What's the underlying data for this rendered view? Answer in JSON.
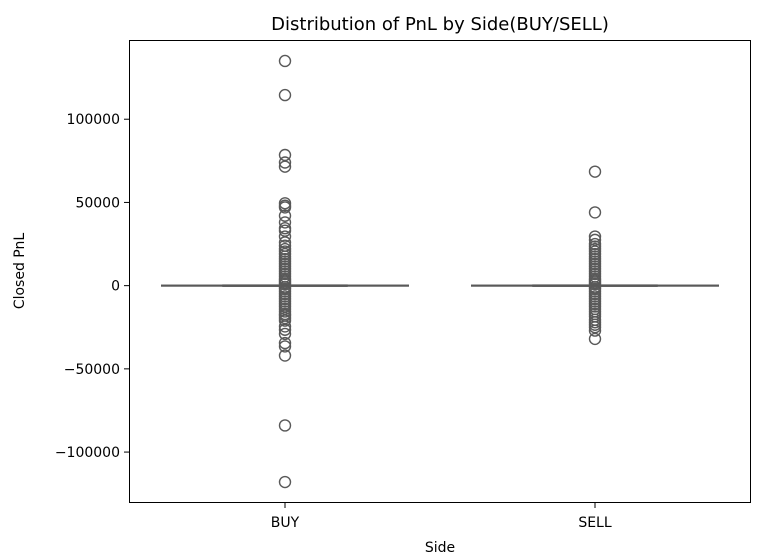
{
  "chart_data": {
    "type": "box",
    "title": "Distribution of PnL by Side(BUY/SELL)",
    "xlabel": "Side",
    "ylabel": "Closed PnL",
    "categories": [
      "BUY",
      "SELL"
    ],
    "ylim": [
      -130000,
      147000
    ],
    "yticks": [
      100000,
      50000,
      0,
      -50000,
      -100000
    ],
    "ytick_labels": [
      "100000",
      "50000",
      "0",
      "−50000",
      "−100000"
    ],
    "grid": false,
    "box_color": "#595959",
    "boxes": [
      {
        "category": "BUY",
        "whisker_low": 0,
        "q1": 0,
        "median": 0,
        "q3": 0,
        "whisker_high": 0,
        "outliers": [
          135000,
          114500,
          78500,
          74000,
          71500,
          49500,
          48000,
          47000,
          42000,
          38000,
          34500,
          33000,
          29500,
          26000,
          24000,
          22000,
          20500,
          19000,
          17500,
          16000,
          14500,
          13000,
          11500,
          10000,
          8500,
          7000,
          5500,
          4000,
          3000,
          2000,
          1000,
          -1000,
          -2000,
          -3500,
          -5000,
          -6500,
          -8000,
          -9500,
          -11000,
          -12500,
          -14000,
          -15500,
          -17000,
          -18000,
          -19500,
          -21000,
          -24500,
          -26500,
          -29000,
          -34500,
          -36500,
          -42000,
          -84000,
          -118000
        ]
      },
      {
        "category": "SELL",
        "whisker_low": 0,
        "q1": 0,
        "median": 0,
        "q3": 0,
        "whisker_high": 0,
        "outliers": [
          68500,
          44000,
          29500,
          27500,
          25000,
          23500,
          22000,
          20500,
          19000,
          17500,
          16000,
          14500,
          13000,
          11500,
          10000,
          8500,
          7000,
          5500,
          4000,
          3000,
          2000,
          1000,
          -1000,
          -2000,
          -3500,
          -5000,
          -6500,
          -8000,
          -9500,
          -11000,
          -12500,
          -14000,
          -15500,
          -17000,
          -18500,
          -20500,
          -22000,
          -23500,
          -25000,
          -27000,
          -32000
        ]
      }
    ]
  }
}
